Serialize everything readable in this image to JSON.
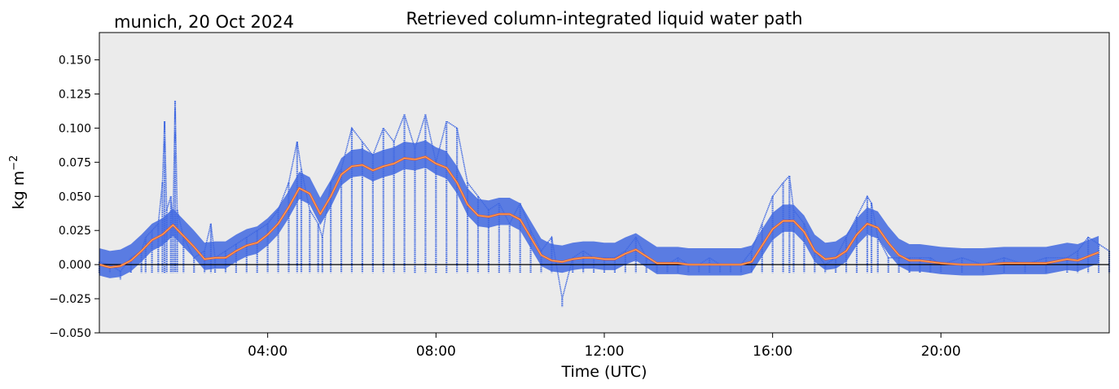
{
  "chart_data": {
    "type": "line",
    "title": "Retrieved column-integrated liquid water path",
    "subtitle": "munich, 20 Oct 2024",
    "xlabel": "Time (UTC)",
    "ylabel": "kg m",
    "ylabel_exponent": "−2",
    "xlim_hours": [
      0,
      24
    ],
    "ylim": [
      -0.05,
      0.17
    ],
    "x_ticks": [
      {
        "hour": 4,
        "label": "04:00"
      },
      {
        "hour": 8,
        "label": "08:00"
      },
      {
        "hour": 12,
        "label": "12:00"
      },
      {
        "hour": 16,
        "label": "16:00"
      },
      {
        "hour": 20,
        "label": "20:00"
      }
    ],
    "y_ticks": [
      {
        "value": -0.05,
        "label": "−0.050"
      },
      {
        "value": -0.025,
        "label": "−0.025"
      },
      {
        "value": 0.0,
        "label": "0.000"
      },
      {
        "value": 0.025,
        "label": "0.025"
      },
      {
        "value": 0.05,
        "label": "0.050"
      },
      {
        "value": 0.075,
        "label": "0.075"
      },
      {
        "value": 0.1,
        "label": "0.100"
      },
      {
        "value": 0.125,
        "label": "0.125"
      },
      {
        "value": 0.15,
        "label": "0.150"
      }
    ],
    "zero_line": true,
    "grid": false,
    "background_color": "#ebebeb",
    "series": [
      {
        "color": "#4169e1",
        "style": "dense dots",
        "x_hours": [
          0.0,
          0.25,
          0.5,
          0.75,
          1.0,
          1.1,
          1.25,
          1.4,
          1.5,
          1.55,
          1.6,
          1.7,
          1.75,
          1.8,
          1.85,
          2.0,
          2.25,
          2.5,
          2.65,
          2.75,
          3.0,
          3.25,
          3.5,
          3.75,
          4.0,
          4.25,
          4.5,
          4.7,
          4.8,
          5.0,
          5.2,
          5.3,
          5.5,
          5.75,
          6.0,
          6.25,
          6.5,
          6.75,
          7.0,
          7.25,
          7.5,
          7.75,
          8.0,
          8.25,
          8.5,
          8.75,
          9.0,
          9.25,
          9.5,
          9.75,
          10.0,
          10.25,
          10.5,
          10.75,
          11.0,
          11.25,
          11.5,
          11.75,
          12.0,
          12.25,
          12.5,
          12.75,
          13.0,
          13.25,
          13.5,
          13.75,
          14.0,
          14.25,
          14.5,
          14.75,
          15.0,
          15.25,
          15.5,
          15.75,
          16.0,
          16.25,
          16.4,
          16.5,
          16.75,
          17.0,
          17.25,
          17.5,
          17.75,
          18.0,
          18.25,
          18.35,
          18.5,
          18.75,
          19.0,
          19.25,
          19.5,
          19.75,
          20.0,
          20.5,
          21.0,
          21.5,
          22.0,
          22.5,
          23.0,
          23.25,
          23.5,
          23.75,
          24.0
        ],
        "y": [
          0.002,
          0.0,
          -0.005,
          0.005,
          0.01,
          0.02,
          0.025,
          0.03,
          0.06,
          0.105,
          0.04,
          0.05,
          0.03,
          0.12,
          0.04,
          0.02,
          0.005,
          0.01,
          0.03,
          0.005,
          0.01,
          0.015,
          0.02,
          0.025,
          0.03,
          0.04,
          0.06,
          0.09,
          0.07,
          0.04,
          0.03,
          0.02,
          0.06,
          0.07,
          0.1,
          0.09,
          0.08,
          0.1,
          0.09,
          0.11,
          0.085,
          0.11,
          0.075,
          0.105,
          0.1,
          0.06,
          0.05,
          0.04,
          0.045,
          0.03,
          0.045,
          0.025,
          0.01,
          0.02,
          -0.025,
          0.005,
          0.01,
          0.005,
          0.005,
          0.005,
          0.01,
          0.02,
          0.005,
          0.0,
          0.0,
          0.005,
          0.0,
          0.0,
          0.005,
          0.0,
          0.0,
          0.0,
          0.01,
          0.03,
          0.05,
          0.06,
          0.065,
          0.04,
          0.03,
          0.01,
          0.0,
          0.005,
          0.02,
          0.035,
          0.05,
          0.045,
          0.02,
          0.005,
          0.005,
          0.005,
          0.005,
          0.005,
          0.0,
          0.005,
          0.0,
          0.005,
          0.0,
          0.005,
          0.005,
          0.01,
          0.02,
          0.015,
          0.01
        ]
      },
      {
        "color": "#f15a24",
        "style": "smoothed line",
        "x_hours": [
          0.0,
          0.25,
          0.5,
          0.75,
          1.0,
          1.25,
          1.5,
          1.75,
          2.0,
          2.25,
          2.5,
          2.75,
          3.0,
          3.25,
          3.5,
          3.75,
          4.0,
          4.25,
          4.5,
          4.75,
          5.0,
          5.25,
          5.5,
          5.75,
          6.0,
          6.25,
          6.5,
          6.75,
          7.0,
          7.25,
          7.5,
          7.75,
          8.0,
          8.25,
          8.5,
          8.75,
          9.0,
          9.25,
          9.5,
          9.75,
          10.0,
          10.25,
          10.5,
          10.75,
          11.0,
          11.25,
          11.5,
          11.75,
          12.0,
          12.25,
          12.5,
          12.75,
          13.0,
          13.25,
          13.5,
          13.75,
          14.0,
          14.5,
          15.0,
          15.25,
          15.5,
          15.75,
          16.0,
          16.25,
          16.5,
          16.75,
          17.0,
          17.25,
          17.5,
          17.75,
          18.0,
          18.25,
          18.5,
          18.75,
          19.0,
          19.25,
          19.5,
          20.0,
          20.5,
          21.0,
          21.5,
          22.0,
          22.5,
          23.0,
          23.25,
          23.5,
          23.75
        ],
        "y": [
          0.0,
          -0.002,
          -0.001,
          0.003,
          0.01,
          0.018,
          0.022,
          0.029,
          0.021,
          0.013,
          0.004,
          0.005,
          0.005,
          0.01,
          0.014,
          0.016,
          0.022,
          0.03,
          0.042,
          0.056,
          0.052,
          0.037,
          0.05,
          0.066,
          0.072,
          0.073,
          0.069,
          0.072,
          0.074,
          0.078,
          0.077,
          0.079,
          0.074,
          0.071,
          0.06,
          0.044,
          0.036,
          0.035,
          0.037,
          0.037,
          0.033,
          0.02,
          0.007,
          0.003,
          0.002,
          0.004,
          0.005,
          0.005,
          0.004,
          0.004,
          0.008,
          0.011,
          0.006,
          0.001,
          0.001,
          0.001,
          0.0,
          0.0,
          0.0,
          0.0,
          0.002,
          0.014,
          0.026,
          0.032,
          0.032,
          0.024,
          0.01,
          0.004,
          0.005,
          0.01,
          0.022,
          0.03,
          0.027,
          0.016,
          0.007,
          0.003,
          0.003,
          0.001,
          0.0,
          0.0,
          0.001,
          0.001,
          0.001,
          0.004,
          0.003,
          0.006,
          0.009
        ]
      }
    ]
  }
}
